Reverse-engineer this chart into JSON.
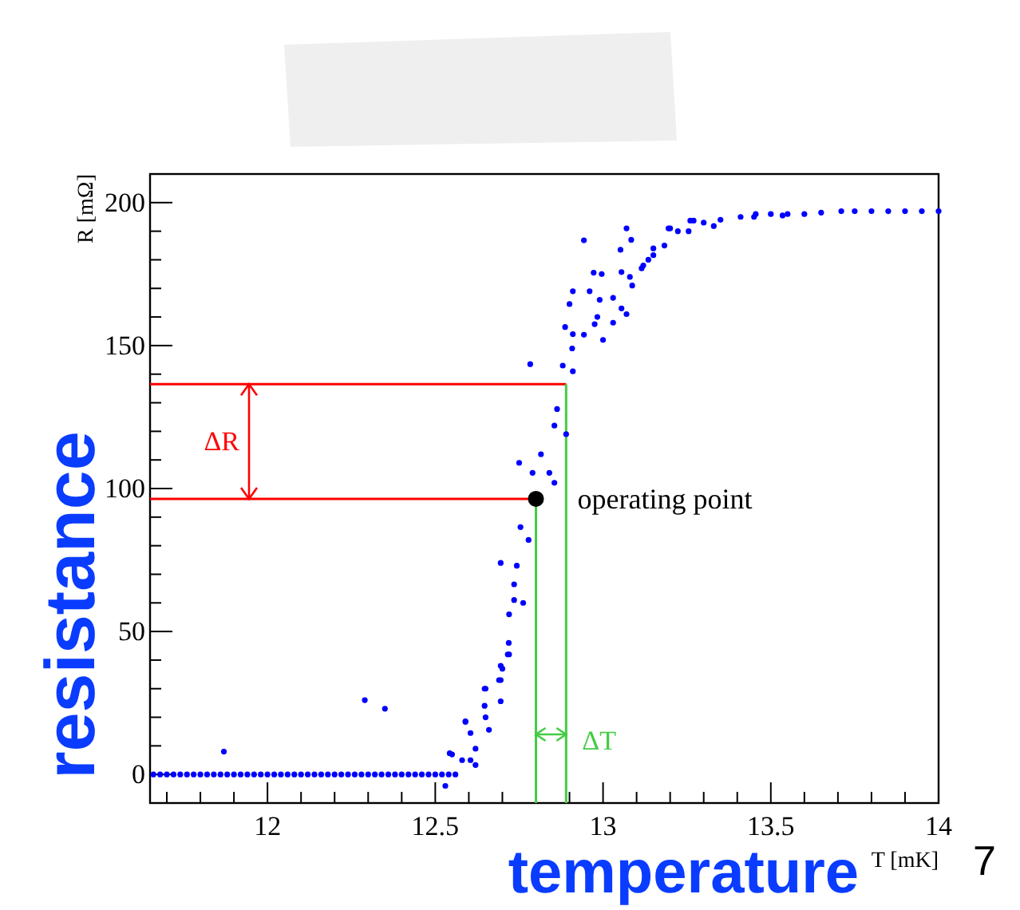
{
  "chart_data": {
    "type": "scatter",
    "xlabel": "T [mK]",
    "ylabel": "R [mΩ]",
    "xlim": [
      11.65,
      14
    ],
    "ylim": [
      -10,
      210
    ],
    "xticks": [
      {
        "value": 11.7,
        "label": null
      },
      {
        "value": 11.8,
        "label": null
      },
      {
        "value": 11.9,
        "label": null
      },
      12,
      {
        "value": 12.1,
        "label": null
      },
      {
        "value": 12.2,
        "label": null
      },
      {
        "value": 12.3,
        "label": null
      },
      {
        "value": 12.4,
        "label": null
      },
      12.5,
      {
        "value": 12.6,
        "label": null
      },
      {
        "value": 12.7,
        "label": null
      },
      {
        "value": 12.8,
        "label": null
      },
      {
        "value": 12.9,
        "label": null
      },
      13,
      {
        "value": 13.1,
        "label": null
      },
      {
        "value": 13.2,
        "label": null
      },
      {
        "value": 13.3,
        "label": null
      },
      {
        "value": 13.4,
        "label": null
      },
      13.5,
      {
        "value": 13.6,
        "label": null
      },
      {
        "value": 13.7,
        "label": null
      },
      {
        "value": 13.8,
        "label": null
      },
      {
        "value": 13.9,
        "label": null
      },
      14
    ],
    "yticks": [
      0,
      {
        "value": 10,
        "label": null
      },
      {
        "value": 20,
        "label": null
      },
      {
        "value": 30,
        "label": null
      },
      {
        "value": 40,
        "label": null
      },
      50,
      {
        "value": 60,
        "label": null
      },
      {
        "value": 70,
        "label": null
      },
      {
        "value": 80,
        "label": null
      },
      {
        "value": 90,
        "label": null
      },
      100,
      {
        "value": 110,
        "label": null
      },
      {
        "value": 120,
        "label": null
      },
      {
        "value": 130,
        "label": null
      },
      {
        "value": 140,
        "label": null
      },
      150,
      {
        "value": 160,
        "label": null
      },
      {
        "value": 170,
        "label": null
      },
      {
        "value": 180,
        "label": null
      },
      {
        "value": 190,
        "label": null
      },
      200
    ],
    "grid": false,
    "marker": "circle",
    "series": [
      {
        "color": "#0000ff",
        "x": [
          11.66,
          11.68,
          11.7,
          11.72,
          11.74,
          11.76,
          11.78,
          11.8,
          11.82,
          11.84,
          11.86,
          11.88,
          11.9,
          11.92,
          11.94,
          11.96,
          11.98,
          12,
          12.02,
          12.04,
          12.06,
          12.08,
          12.1,
          12.12,
          12.14,
          12.16,
          12.18,
          12.2,
          12.22,
          12.24,
          12.26,
          12.28,
          12.3,
          12.32,
          12.34,
          12.36,
          12.38,
          12.4,
          12.42,
          12.44,
          12.46,
          12.48,
          12.5,
          12.52,
          12.54,
          12.56,
          11.87,
          12.29,
          12.35,
          12.53,
          12.543,
          12.59,
          12.605,
          12.62,
          12.62,
          12.65,
          12.65,
          12.69,
          12.7,
          12.72,
          12.72,
          12.66,
          12.58,
          12.605,
          12.59,
          12.647,
          12.647,
          12.695,
          12.716,
          12.695,
          12.719,
          12.735,
          12.762,
          12.735,
          12.695,
          12.743,
          12.754,
          12.778,
          12.695,
          12.55,
          12.863,
          12.855,
          12.89,
          12.815,
          12.75,
          12.79,
          12.84,
          12.855,
          12.783,
          12.88,
          12.91,
          12.887,
          12.91,
          12.908,
          12.9,
          12.91,
          12.943,
          12.972,
          12.996,
          12.96,
          12.99,
          12.983,
          12.975,
          13.0,
          12.943,
          13.03,
          13.03,
          13.055,
          13.07,
          13.055,
          13.08,
          13.07,
          13.084,
          13.052,
          13.087,
          13.115,
          13.135,
          13.15,
          13.183,
          13.195,
          13.223,
          13.255,
          13.27,
          13.12,
          13.15,
          13.2,
          13.26,
          13.33,
          13.41,
          13.455,
          13.535,
          13.6,
          13.71,
          13.3,
          13.35,
          13.45,
          13.5,
          13.55,
          13.65,
          13.75,
          13.8,
          13.85,
          13.9,
          13.95,
          14
        ],
        "values": [
          0,
          0,
          0,
          0,
          0,
          0,
          0,
          0,
          0,
          0,
          0,
          0,
          0,
          0,
          0,
          0,
          0,
          0,
          0,
          0,
          0,
          0,
          0,
          0,
          0,
          0,
          0,
          0,
          0,
          0,
          0,
          0,
          0,
          0,
          0,
          0,
          0,
          0,
          0,
          0,
          0,
          0,
          0,
          0,
          0,
          0,
          8,
          26,
          23,
          -4,
          7.4,
          18.6,
          14.5,
          9,
          3.3,
          20,
          30,
          33,
          37,
          42,
          56,
          15.6,
          5,
          5,
          18.4,
          24,
          30,
          33,
          42,
          38,
          46,
          61,
          60,
          66.5,
          74,
          73,
          86.5,
          82,
          25.6,
          7,
          127.8,
          122,
          119,
          112,
          109,
          105.5,
          105.5,
          102,
          143.5,
          143,
          141,
          156.5,
          154,
          149,
          164.5,
          169,
          186.8,
          175.5,
          175,
          169,
          166,
          160,
          157.5,
          152,
          153.8,
          166.7,
          158,
          163,
          161,
          175.7,
          174,
          191,
          187,
          183.5,
          171,
          177,
          180,
          184,
          185,
          191,
          190,
          190,
          193.7,
          178,
          181.6,
          191,
          193.7,
          191.8,
          195,
          196,
          195.5,
          196,
          197,
          193,
          194,
          195,
          196,
          196,
          196.5,
          197,
          197,
          197,
          197,
          197,
          197
        ]
      },
      {
        "color": "#000000",
        "type": "scatter",
        "x": [
          12.8
        ],
        "values": [
          96.4
        ]
      }
    ],
    "ref_lines": [
      {
        "axis": "y",
        "value": 96.4,
        "color": "#ff0000"
      },
      {
        "axis": "y",
        "value": 136.5,
        "color": "#ff0000"
      },
      {
        "axis": "x",
        "value": 12.8,
        "color": "#44cc44"
      },
      {
        "axis": "x",
        "value": 12.89,
        "color": "#44cc44"
      }
    ],
    "annotations": [
      "ΔR",
      "ΔT",
      {
        "text": "operating point",
        "x": 12.8,
        "y": 96.4
      },
      "resistance",
      "temperature",
      "7"
    ]
  }
}
